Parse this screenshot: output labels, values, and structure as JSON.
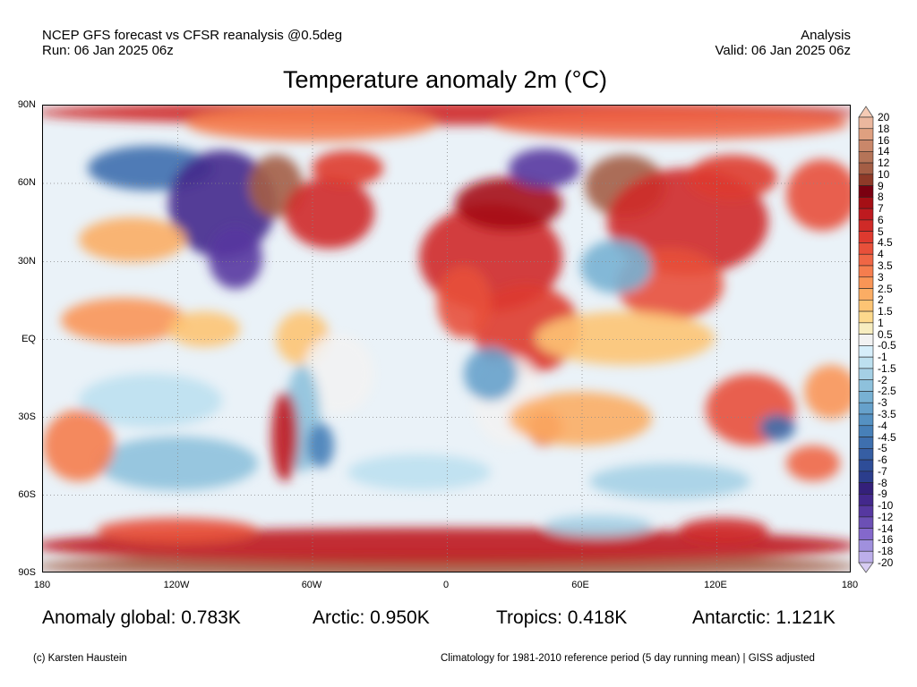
{
  "header": {
    "left_line1": "NCEP GFS forecast vs CFSR reanalysis @0.5deg",
    "left_line2": "Run: 06 Jan 2025 06z",
    "right_line1": "Analysis",
    "right_line2": "Valid: 06 Jan 2025 06z"
  },
  "title": "Temperature anomaly 2m (°C)",
  "lat_labels": [
    "90N",
    "60N",
    "30N",
    "EQ",
    "30S",
    "60S",
    "90S"
  ],
  "lon_labels": [
    "180",
    "120W",
    "60W",
    "0",
    "60E",
    "120E",
    "180"
  ],
  "stats": {
    "global": "Anomaly global: 0.783K",
    "arctic": "Arctic: 0.950K",
    "tropics": "Tropics: 0.418K",
    "antarctic": "Antarctic: 1.121K"
  },
  "footer": {
    "credit": "(c) Karsten Haustein",
    "note": "Climatology for 1981-2010 reference period (5 day running mean) | GISS adjusted"
  },
  "colorbar": {
    "labels": [
      "20",
      "18",
      "16",
      "14",
      "12",
      "10",
      "9",
      "8",
      "7",
      "6",
      "5",
      "4.5",
      "4",
      "3.5",
      "3",
      "2.5",
      "2",
      "1.5",
      "1",
      "0.5",
      "-0.5",
      "-1",
      "-1.5",
      "-2",
      "-2.5",
      "-3",
      "-3.5",
      "-4",
      "-4.5",
      "-5",
      "-6",
      "-7",
      "-8",
      "-9",
      "-10",
      "-12",
      "-14",
      "-16",
      "-18",
      "-20"
    ],
    "colors": [
      "#f5cbb5",
      "#ebb79e",
      "#dfa080",
      "#c9876a",
      "#b57458",
      "#a45e45",
      "#8e3a28",
      "#7a0010",
      "#a50f15",
      "#be1a1f",
      "#cf2a27",
      "#de3a2f",
      "#e8503a",
      "#ef6645",
      "#f57d4e",
      "#f99556",
      "#fbad64",
      "#fdc474",
      "#fdd98c",
      "#f7edc0",
      "#f2f2f2",
      "#d6eefa",
      "#bde0ef",
      "#a5d0e5",
      "#8ec1dc",
      "#78b1d3",
      "#66a1cb",
      "#5591c2",
      "#4780b8",
      "#3e6fae",
      "#365ea3",
      "#2e4d98",
      "#2b3d8c",
      "#34207a",
      "#43288c",
      "#5638a0",
      "#6c50b5",
      "#8468cb",
      "#a090dd",
      "#bcaeea",
      "#d8cdf3"
    ]
  }
}
